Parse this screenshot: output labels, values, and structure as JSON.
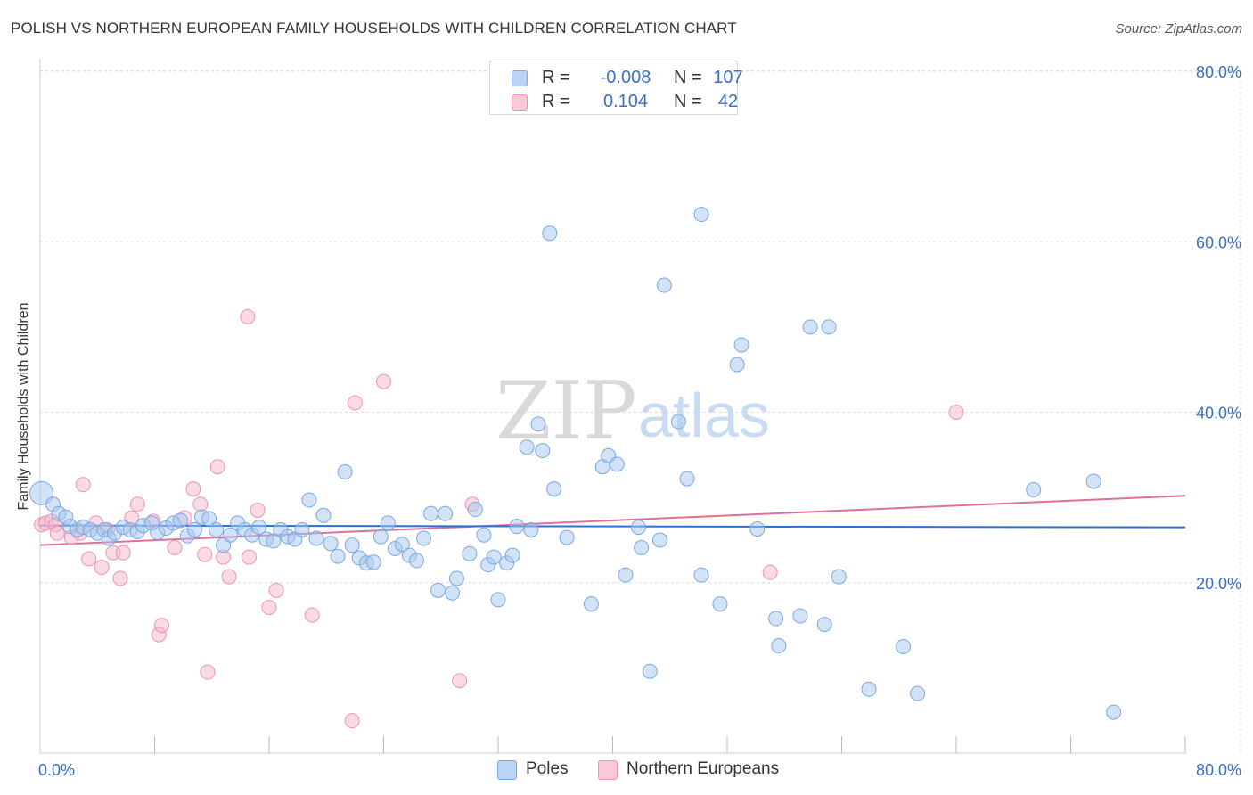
{
  "header": {
    "title": "POLISH VS NORTHERN EUROPEAN FAMILY HOUSEHOLDS WITH CHILDREN CORRELATION CHART",
    "source": "Source: ZipAtlas.com"
  },
  "watermark": {
    "zip": "ZIP",
    "atlas": "atlas"
  },
  "stats": {
    "poles": {
      "r_label": "R =",
      "r_value": "-0.008",
      "n_label": "N =",
      "n_value": "107"
    },
    "northern": {
      "r_label": "R =",
      "r_value": "0.104",
      "n_label": "N =",
      "n_value": "42"
    }
  },
  "colors": {
    "poles_fill": "#a8c8f0",
    "poles_stroke": "#7aa8e0",
    "poles_line": "#2e6fd0",
    "northern_fill": "#f6b8cb",
    "northern_stroke": "#ee93b0",
    "northern_line": "#e0709a",
    "grid": "#dddddd",
    "tick_label": "#3a6fc4"
  },
  "chart_data": {
    "type": "scatter",
    "title": "POLISH VS NORTHERN EUROPEAN FAMILY HOUSEHOLDS WITH CHILDREN CORRELATION CHART",
    "xlabel": "",
    "ylabel": "Family Households with Children",
    "xlim": [
      0,
      0.8
    ],
    "ylim": [
      0,
      0.8
    ],
    "x_tick_labels": [
      "0.0%",
      "80.0%"
    ],
    "y_ticks": [
      0.2,
      0.4,
      0.6,
      0.8
    ],
    "y_tick_labels": [
      "20.0%",
      "40.0%",
      "60.0%",
      "80.0%"
    ],
    "grid": true,
    "legend_position": "bottom",
    "series": [
      {
        "name": "Poles",
        "trend": [
          [
            0,
            0.267
          ],
          [
            0.8,
            0.265
          ]
        ],
        "points": [
          [
            0.001,
            0.305
          ],
          [
            0.009,
            0.292
          ],
          [
            0.013,
            0.281
          ],
          [
            0.018,
            0.277
          ],
          [
            0.021,
            0.266
          ],
          [
            0.026,
            0.262
          ],
          [
            0.03,
            0.265
          ],
          [
            0.035,
            0.262
          ],
          [
            0.04,
            0.258
          ],
          [
            0.045,
            0.262
          ],
          [
            0.048,
            0.252
          ],
          [
            0.052,
            0.258
          ],
          [
            0.058,
            0.265
          ],
          [
            0.063,
            0.262
          ],
          [
            0.068,
            0.26
          ],
          [
            0.072,
            0.267
          ],
          [
            0.078,
            0.27
          ],
          [
            0.082,
            0.259
          ],
          [
            0.088,
            0.264
          ],
          [
            0.093,
            0.27
          ],
          [
            0.098,
            0.273
          ],
          [
            0.103,
            0.255
          ],
          [
            0.108,
            0.262
          ],
          [
            0.113,
            0.277
          ],
          [
            0.118,
            0.275
          ],
          [
            0.123,
            0.262
          ],
          [
            0.128,
            0.244
          ],
          [
            0.133,
            0.256
          ],
          [
            0.138,
            0.27
          ],
          [
            0.143,
            0.262
          ],
          [
            0.148,
            0.256
          ],
          [
            0.153,
            0.265
          ],
          [
            0.158,
            0.251
          ],
          [
            0.163,
            0.249
          ],
          [
            0.168,
            0.262
          ],
          [
            0.173,
            0.254
          ],
          [
            0.178,
            0.251
          ],
          [
            0.183,
            0.262
          ],
          [
            0.188,
            0.297
          ],
          [
            0.193,
            0.252
          ],
          [
            0.198,
            0.279
          ],
          [
            0.203,
            0.246
          ],
          [
            0.208,
            0.231
          ],
          [
            0.213,
            0.33
          ],
          [
            0.218,
            0.244
          ],
          [
            0.223,
            0.229
          ],
          [
            0.228,
            0.223
          ],
          [
            0.233,
            0.224
          ],
          [
            0.238,
            0.254
          ],
          [
            0.243,
            0.27
          ],
          [
            0.248,
            0.24
          ],
          [
            0.253,
            0.245
          ],
          [
            0.258,
            0.232
          ],
          [
            0.263,
            0.226
          ],
          [
            0.268,
            0.252
          ],
          [
            0.273,
            0.281
          ],
          [
            0.278,
            0.191
          ],
          [
            0.283,
            0.281
          ],
          [
            0.288,
            0.188
          ],
          [
            0.291,
            0.205
          ],
          [
            0.3,
            0.234
          ],
          [
            0.304,
            0.286
          ],
          [
            0.31,
            0.256
          ],
          [
            0.313,
            0.221
          ],
          [
            0.317,
            0.23
          ],
          [
            0.32,
            0.18
          ],
          [
            0.326,
            0.223
          ],
          [
            0.33,
            0.232
          ],
          [
            0.333,
            0.266
          ],
          [
            0.34,
            0.359
          ],
          [
            0.343,
            0.262
          ],
          [
            0.348,
            0.386
          ],
          [
            0.351,
            0.355
          ],
          [
            0.356,
            0.61
          ],
          [
            0.359,
            0.31
          ],
          [
            0.368,
            0.253
          ],
          [
            0.385,
            0.175
          ],
          [
            0.393,
            0.336
          ],
          [
            0.397,
            0.349
          ],
          [
            0.403,
            0.339
          ],
          [
            0.409,
            0.209
          ],
          [
            0.418,
            0.265
          ],
          [
            0.42,
            0.241
          ],
          [
            0.426,
            0.096
          ],
          [
            0.433,
            0.25
          ],
          [
            0.436,
            0.549
          ],
          [
            0.446,
            0.389
          ],
          [
            0.452,
            0.322
          ],
          [
            0.462,
            0.632
          ],
          [
            0.462,
            0.209
          ],
          [
            0.475,
            0.175
          ],
          [
            0.487,
            0.456
          ],
          [
            0.49,
            0.479
          ],
          [
            0.501,
            0.263
          ],
          [
            0.514,
            0.158
          ],
          [
            0.516,
            0.126
          ],
          [
            0.531,
            0.161
          ],
          [
            0.538,
            0.5
          ],
          [
            0.548,
            0.151
          ],
          [
            0.551,
            0.5
          ],
          [
            0.558,
            0.207
          ],
          [
            0.579,
            0.075
          ],
          [
            0.603,
            0.125
          ],
          [
            0.613,
            0.07
          ],
          [
            0.694,
            0.309
          ],
          [
            0.736,
            0.319
          ],
          [
            0.75,
            0.048
          ]
        ]
      },
      {
        "name": "Northern Europeans",
        "trend": [
          [
            0,
            0.244
          ],
          [
            0.8,
            0.302
          ]
        ],
        "points": [
          [
            0.001,
            0.268
          ],
          [
            0.004,
            0.27
          ],
          [
            0.008,
            0.272
          ],
          [
            0.011,
            0.268
          ],
          [
            0.012,
            0.258
          ],
          [
            0.022,
            0.253
          ],
          [
            0.028,
            0.258
          ],
          [
            0.03,
            0.315
          ],
          [
            0.034,
            0.228
          ],
          [
            0.039,
            0.27
          ],
          [
            0.043,
            0.218
          ],
          [
            0.047,
            0.262
          ],
          [
            0.051,
            0.235
          ],
          [
            0.056,
            0.205
          ],
          [
            0.058,
            0.235
          ],
          [
            0.064,
            0.276
          ],
          [
            0.068,
            0.292
          ],
          [
            0.079,
            0.272
          ],
          [
            0.083,
            0.139
          ],
          [
            0.085,
            0.15
          ],
          [
            0.094,
            0.241
          ],
          [
            0.101,
            0.276
          ],
          [
            0.107,
            0.31
          ],
          [
            0.112,
            0.292
          ],
          [
            0.115,
            0.233
          ],
          [
            0.117,
            0.095
          ],
          [
            0.124,
            0.336
          ],
          [
            0.128,
            0.23
          ],
          [
            0.132,
            0.207
          ],
          [
            0.145,
            0.512
          ],
          [
            0.146,
            0.23
          ],
          [
            0.152,
            0.285
          ],
          [
            0.16,
            0.171
          ],
          [
            0.165,
            0.191
          ],
          [
            0.19,
            0.162
          ],
          [
            0.218,
            0.038
          ],
          [
            0.22,
            0.411
          ],
          [
            0.24,
            0.436
          ],
          [
            0.293,
            0.085
          ],
          [
            0.302,
            0.292
          ],
          [
            0.51,
            0.212
          ],
          [
            0.64,
            0.4
          ]
        ]
      }
    ]
  },
  "legend": {
    "poles_label": "Poles",
    "northern_label": "Northern Europeans"
  }
}
